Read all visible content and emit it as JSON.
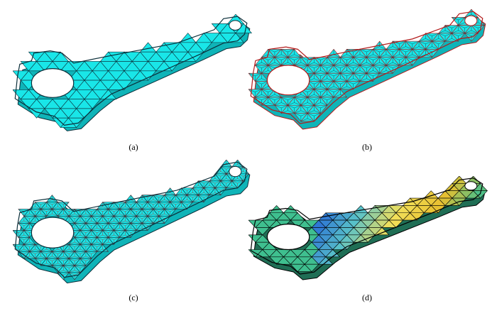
{
  "figure": {
    "panels": [
      {
        "id": "a",
        "caption": "(a)",
        "fill": "#19e6e8",
        "edge": "#0b2f3a",
        "inner_edge": "",
        "shading": "solid"
      },
      {
        "id": "b",
        "caption": "(b)",
        "fill": "#19e6e8",
        "edge": "#b21a1a",
        "inner_edge": "#0b2f3a",
        "shading": "solid"
      },
      {
        "id": "c",
        "caption": "(c)",
        "fill": "#19e6e8",
        "edge": "#0b2f3a",
        "inner_edge": "#b21a1a",
        "shading": "solid"
      },
      {
        "id": "d",
        "caption": "(d)",
        "fill": "#3fbf8f",
        "edge": "#000000",
        "inner_edge": "",
        "shading": "gradient"
      }
    ],
    "gradient_colors": [
      "#2e9a7a",
      "#2a6fd6",
      "#59c2c9",
      "#f2e05a",
      "#e8c030",
      "#3fbf8f"
    ]
  }
}
